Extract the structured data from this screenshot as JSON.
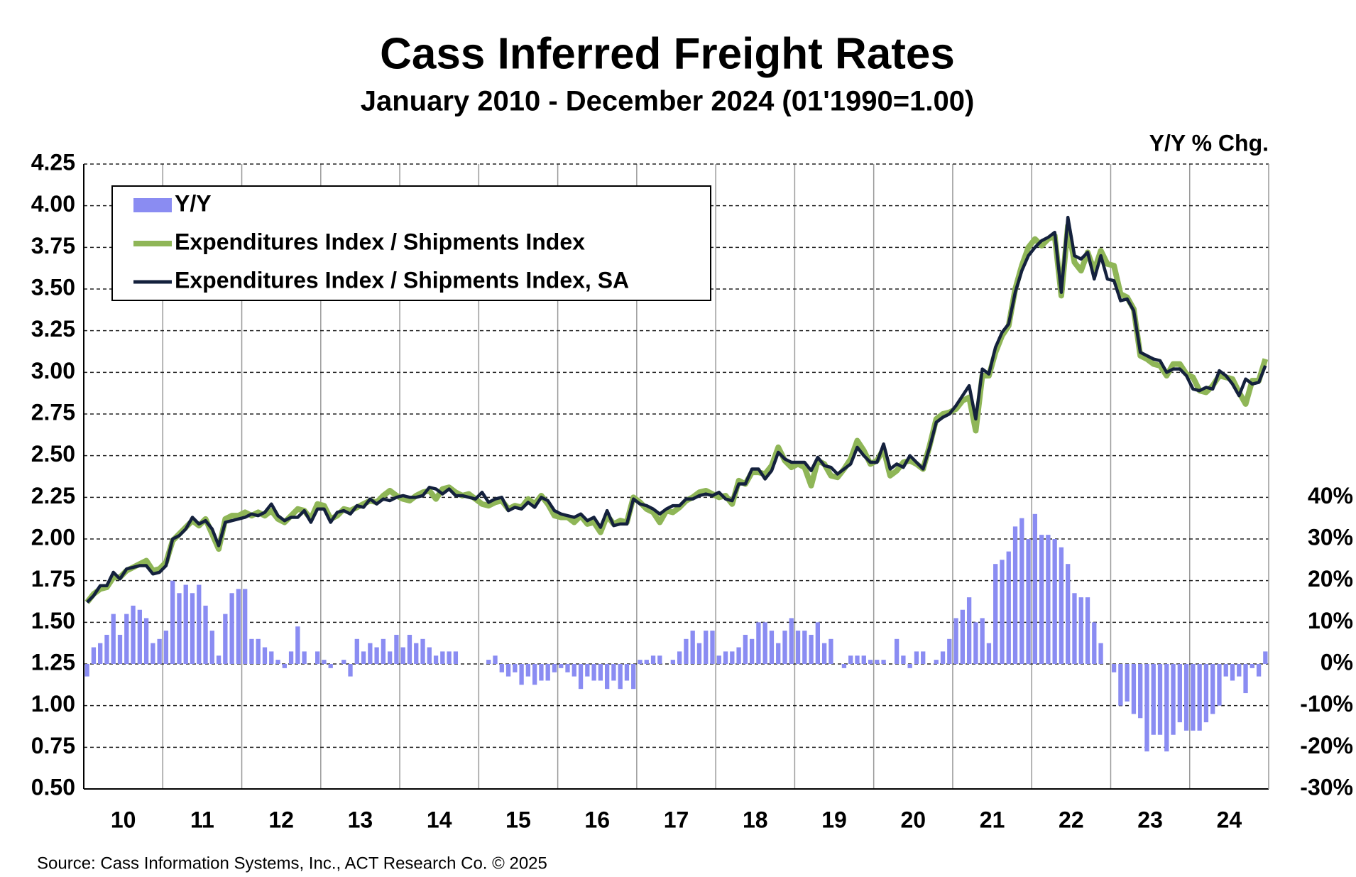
{
  "chart_data": {
    "type": "combo",
    "title": "Cass Inferred Freight Rates",
    "subtitle": "January 2010 - December 2024 (01'1990=1.00)",
    "y2_axis_label": "Y/Y % Chg.",
    "source": "Source: Cass Information Systems, Inc., ACT Research Co. © 2025",
    "categories": [
      null,
      null,
      null,
      null,
      null,
      null,
      "10",
      null,
      null,
      null,
      null,
      null,
      null,
      null,
      null,
      null,
      null,
      null,
      "11",
      null,
      null,
      null,
      null,
      null,
      null,
      null,
      null,
      null,
      null,
      null,
      "12",
      null,
      null,
      null,
      null,
      null,
      null,
      null,
      null,
      null,
      null,
      null,
      "13",
      null,
      null,
      null,
      null,
      null,
      null,
      null,
      null,
      null,
      null,
      null,
      "14",
      null,
      null,
      null,
      null,
      null,
      null,
      null,
      null,
      null,
      null,
      null,
      "15",
      null,
      null,
      null,
      null,
      null,
      null,
      null,
      null,
      null,
      null,
      null,
      "16",
      null,
      null,
      null,
      null,
      null,
      null,
      null,
      null,
      null,
      null,
      null,
      "17",
      null,
      null,
      null,
      null,
      null,
      null,
      null,
      null,
      null,
      null,
      null,
      "18",
      null,
      null,
      null,
      null,
      null,
      null,
      null,
      null,
      null,
      null,
      null,
      "19",
      null,
      null,
      null,
      null,
      null,
      null,
      null,
      null,
      null,
      null,
      null,
      "20",
      null,
      null,
      null,
      null,
      null,
      null,
      null,
      null,
      null,
      null,
      null,
      "21",
      null,
      null,
      null,
      null,
      null,
      null,
      null,
      null,
      null,
      null,
      null,
      "22",
      null,
      null,
      null,
      null,
      null,
      null,
      null,
      null,
      null,
      null,
      null,
      "23",
      null,
      null,
      null,
      null,
      null,
      null,
      null,
      null,
      null,
      null,
      null,
      "24",
      null,
      null,
      null,
      null,
      null
    ],
    "ylim": [
      0.5,
      4.25
    ],
    "yticks": [
      {
        "value": 0.5,
        "label": "0.50"
      },
      {
        "value": 0.75,
        "label": "0.75"
      },
      {
        "value": 1.0,
        "label": "1.00"
      },
      {
        "value": 1.25,
        "label": "1.25"
      },
      {
        "value": 1.5,
        "label": "1.50"
      },
      {
        "value": 1.75,
        "label": "1.75"
      },
      {
        "value": 2.0,
        "label": "2.00"
      },
      {
        "value": 2.25,
        "label": "2.25"
      },
      {
        "value": 2.5,
        "label": "2.50"
      },
      {
        "value": 2.75,
        "label": "2.75"
      },
      {
        "value": 3.0,
        "label": "3.00"
      },
      {
        "value": 3.25,
        "label": "3.25"
      },
      {
        "value": 3.5,
        "label": "3.50"
      },
      {
        "value": 3.75,
        "label": "3.75"
      },
      {
        "value": 4.0,
        "label": "4.00"
      },
      {
        "value": 4.25,
        "label": "4.25"
      }
    ],
    "y2lim": [
      -30,
      120
    ],
    "y2ticks": [
      {
        "value": -30,
        "label": "-30%"
      },
      {
        "value": -20,
        "label": "-20%"
      },
      {
        "value": -10,
        "label": "-10%"
      },
      {
        "value": 0,
        "label": "0%"
      },
      {
        "value": 10,
        "label": "10%"
      },
      {
        "value": 20,
        "label": "20%"
      },
      {
        "value": 30,
        "label": "30%"
      },
      {
        "value": 40,
        "label": "40%"
      }
    ],
    "grid": true,
    "legend": "top-left",
    "series": [
      {
        "name": "Y/Y",
        "type": "bar",
        "axis": "y2",
        "color": "#8a8cf2",
        "values": [
          -3,
          4,
          5,
          7,
          12,
          7,
          12,
          14,
          13,
          11,
          5,
          6,
          8,
          20,
          17,
          19,
          17,
          19,
          14,
          8,
          2,
          12,
          17,
          18,
          18,
          6,
          6,
          4,
          3,
          1,
          -1,
          3,
          9,
          3,
          0,
          3,
          1,
          -1,
          0,
          1,
          -3,
          6,
          3,
          5,
          4,
          6,
          3,
          7,
          4,
          7,
          5,
          6,
          4,
          2,
          3,
          3,
          3,
          0,
          0,
          0,
          0,
          1,
          2,
          -2,
          -3,
          -2,
          -5,
          -3,
          -5,
          -4,
          -4,
          -2,
          -1,
          -2,
          -3,
          -6,
          -3,
          -4,
          -4,
          -6,
          -4,
          -6,
          -4,
          -6,
          1,
          1,
          2,
          2,
          0,
          1,
          3,
          6,
          8,
          5,
          8,
          8,
          2,
          3,
          3,
          4,
          7,
          6,
          10,
          10,
          8,
          5,
          8,
          11,
          8,
          8,
          7,
          10,
          5,
          6,
          0,
          -1,
          2,
          2,
          2,
          1,
          1,
          1,
          0,
          6,
          2,
          -1,
          3,
          3,
          0,
          1,
          3,
          6,
          11,
          13,
          16,
          10,
          11,
          5,
          24,
          25,
          27,
          33,
          35,
          30,
          36,
          31,
          31,
          30,
          28,
          24,
          17,
          16,
          16,
          10,
          5,
          0,
          -2,
          -10,
          -9,
          -12,
          -13,
          -21,
          -17,
          -17,
          -21,
          -17,
          -14,
          -16,
          -16,
          -16,
          -14,
          -12,
          -10,
          -3,
          -4,
          -3,
          -7,
          -1,
          -3,
          3
        ]
      },
      {
        "name": "Expenditures Index / Shipments Index",
        "type": "line",
        "color": "#8fb657",
        "values": [
          1.62,
          1.67,
          1.7,
          1.71,
          1.77,
          1.77,
          1.81,
          1.83,
          1.85,
          1.87,
          1.81,
          1.82,
          1.86,
          1.99,
          2.03,
          2.07,
          2.11,
          2.08,
          2.12,
          2.03,
          1.94,
          2.12,
          2.14,
          2.14,
          2.16,
          2.14,
          2.16,
          2.14,
          2.17,
          2.12,
          2.1,
          2.14,
          2.18,
          2.17,
          2.12,
          2.21,
          2.2,
          2.12,
          2.14,
          2.18,
          2.17,
          2.19,
          2.21,
          2.23,
          2.22,
          2.26,
          2.29,
          2.26,
          2.24,
          2.23,
          2.26,
          2.28,
          2.29,
          2.24,
          2.3,
          2.31,
          2.28,
          2.26,
          2.27,
          2.24,
          2.21,
          2.2,
          2.22,
          2.23,
          2.18,
          2.2,
          2.19,
          2.24,
          2.21,
          2.26,
          2.21,
          2.14,
          2.13,
          2.13,
          2.1,
          2.14,
          2.09,
          2.1,
          2.04,
          2.14,
          2.09,
          2.11,
          2.1,
          2.25,
          2.22,
          2.18,
          2.16,
          2.1,
          2.17,
          2.16,
          2.19,
          2.23,
          2.25,
          2.28,
          2.29,
          2.27,
          2.25,
          2.26,
          2.21,
          2.35,
          2.33,
          2.4,
          2.4,
          2.39,
          2.44,
          2.55,
          2.47,
          2.43,
          2.45,
          2.43,
          2.32,
          2.47,
          2.45,
          2.38,
          2.37,
          2.42,
          2.48,
          2.59,
          2.53,
          2.45,
          2.47,
          2.54,
          2.38,
          2.41,
          2.46,
          2.47,
          2.45,
          2.42,
          2.56,
          2.72,
          2.75,
          2.76,
          2.78,
          2.83,
          2.85,
          2.65,
          2.98,
          2.98,
          3.12,
          3.22,
          3.28,
          3.5,
          3.64,
          3.75,
          3.8,
          3.76,
          3.8,
          3.82,
          3.46,
          3.88,
          3.66,
          3.61,
          3.72,
          3.61,
          3.73,
          3.65,
          3.64,
          3.47,
          3.45,
          3.38,
          3.1,
          3.08,
          3.05,
          3.04,
          2.98,
          3.05,
          3.05,
          2.99,
          2.97,
          2.89,
          2.88,
          2.92,
          2.98,
          2.97,
          2.96,
          2.88,
          2.81,
          2.95,
          2.95,
          3.08
        ]
      },
      {
        "name": "Expenditures Index / Shipments Index, SA",
        "type": "line",
        "color": "#14213d",
        "values": [
          1.62,
          1.66,
          1.72,
          1.72,
          1.8,
          1.76,
          1.82,
          1.83,
          1.84,
          1.84,
          1.79,
          1.8,
          1.84,
          2.0,
          2.02,
          2.06,
          2.13,
          2.09,
          2.11,
          2.06,
          1.96,
          2.1,
          2.11,
          2.12,
          2.13,
          2.15,
          2.14,
          2.16,
          2.21,
          2.14,
          2.11,
          2.13,
          2.13,
          2.17,
          2.1,
          2.18,
          2.18,
          2.1,
          2.16,
          2.17,
          2.15,
          2.2,
          2.19,
          2.24,
          2.21,
          2.24,
          2.23,
          2.25,
          2.26,
          2.25,
          2.25,
          2.26,
          2.31,
          2.3,
          2.27,
          2.3,
          2.26,
          2.26,
          2.25,
          2.24,
          2.28,
          2.22,
          2.24,
          2.25,
          2.17,
          2.19,
          2.18,
          2.22,
          2.19,
          2.25,
          2.23,
          2.17,
          2.15,
          2.14,
          2.13,
          2.15,
          2.11,
          2.13,
          2.07,
          2.17,
          2.08,
          2.09,
          2.09,
          2.24,
          2.21,
          2.2,
          2.18,
          2.15,
          2.18,
          2.2,
          2.2,
          2.24,
          2.24,
          2.26,
          2.27,
          2.26,
          2.28,
          2.24,
          2.23,
          2.33,
          2.33,
          2.42,
          2.42,
          2.36,
          2.41,
          2.52,
          2.48,
          2.46,
          2.46,
          2.46,
          2.41,
          2.49,
          2.44,
          2.43,
          2.39,
          2.42,
          2.45,
          2.55,
          2.5,
          2.46,
          2.46,
          2.57,
          2.42,
          2.45,
          2.43,
          2.5,
          2.46,
          2.42,
          2.55,
          2.7,
          2.73,
          2.75,
          2.8,
          2.86,
          2.92,
          2.72,
          3.02,
          2.99,
          3.15,
          3.24,
          3.29,
          3.48,
          3.61,
          3.7,
          3.75,
          3.79,
          3.81,
          3.84,
          3.48,
          3.93,
          3.7,
          3.68,
          3.72,
          3.56,
          3.7,
          3.56,
          3.55,
          3.43,
          3.44,
          3.37,
          3.12,
          3.1,
          3.08,
          3.07,
          3.0,
          3.02,
          3.02,
          2.98,
          2.9,
          2.89,
          2.91,
          2.9,
          3.01,
          2.98,
          2.93,
          2.86,
          2.96,
          2.93,
          2.94,
          3.04
        ]
      }
    ]
  }
}
